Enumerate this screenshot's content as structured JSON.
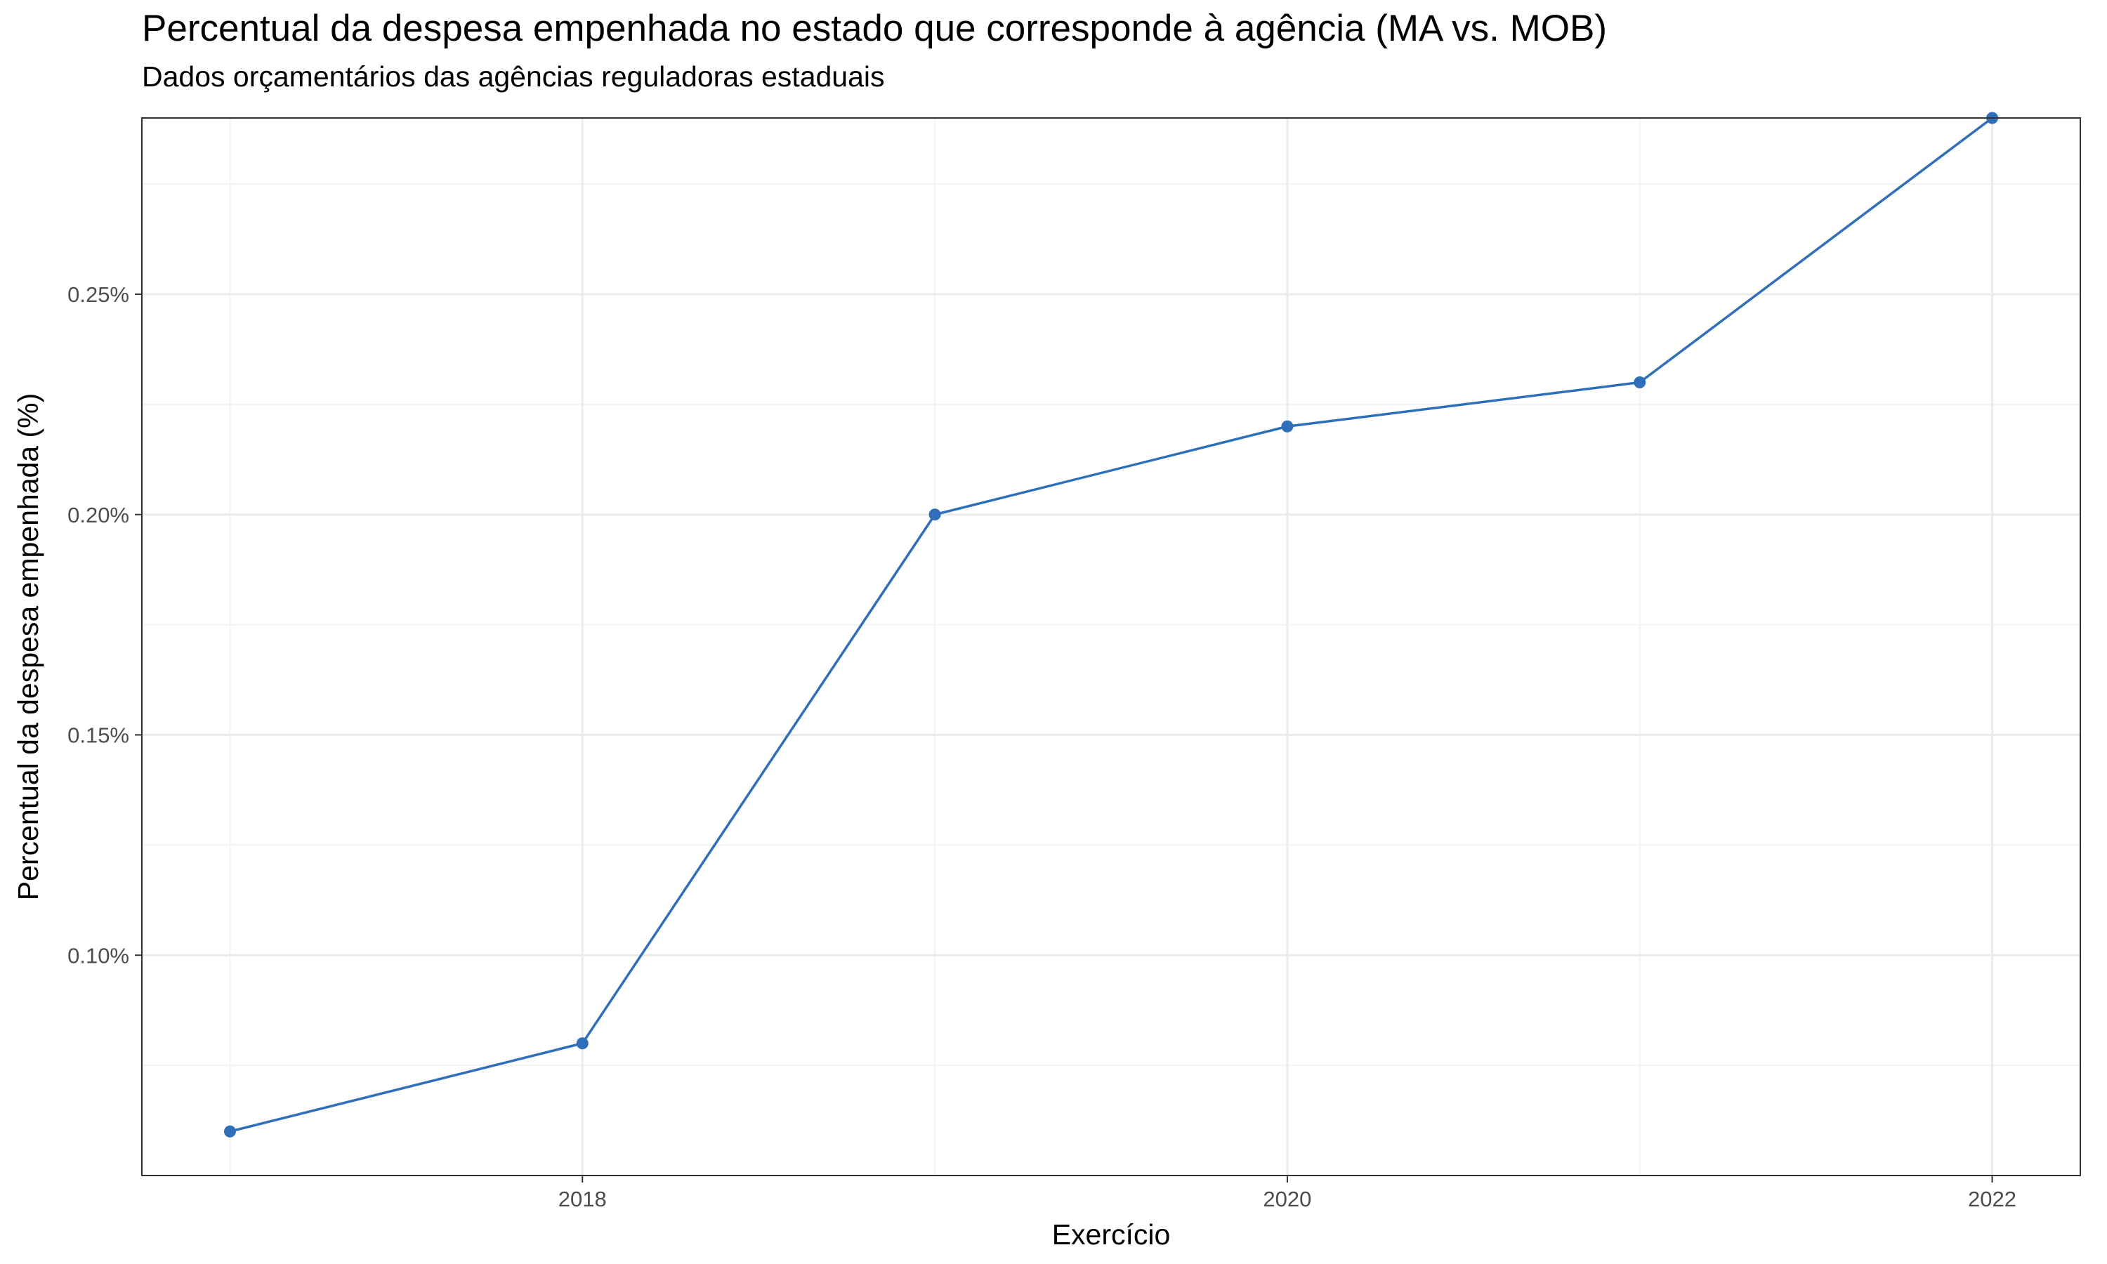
{
  "title": "Percentual da despesa empenhada no estado que corresponde à agência (MA vs. MOB)",
  "subtitle": "Dados orçamentários das agências reguladoras estaduais",
  "chart_data": {
    "type": "line",
    "xlabel": "Exercício",
    "ylabel": "Percentual da despesa empenhada (%)",
    "x": [
      2017,
      2018,
      2019,
      2020,
      2021,
      2022
    ],
    "series": [
      {
        "values": [
          0.0006,
          0.0008,
          0.002,
          0.0022,
          0.0023,
          0.0029
        ],
        "color": "#2f6fba"
      }
    ],
    "xlim": [
      2016.75,
      2022.25
    ],
    "ylim": [
      0.0005,
      0.0029
    ],
    "x_ticks": [
      2018,
      2020,
      2022
    ],
    "x_tick_labels": [
      "2018",
      "2020",
      "2022"
    ],
    "y_ticks": [
      0.001,
      0.0015,
      0.002,
      0.0025
    ],
    "y_tick_labels": [
      "0.10%",
      "0.15%",
      "0.20%",
      "0.25%"
    ],
    "y_minor_ticks": [
      0.00075,
      0.00125,
      0.00175,
      0.00225,
      0.00275
    ],
    "x_minor_ticks": [
      2017,
      2019,
      2021
    ],
    "grid": true,
    "panel_border": true,
    "colors": {
      "grid_major": "#ebebeb",
      "grid_minor": "#f2f2f2",
      "border": "#333333",
      "tick_text": "#4d4d4d"
    }
  }
}
